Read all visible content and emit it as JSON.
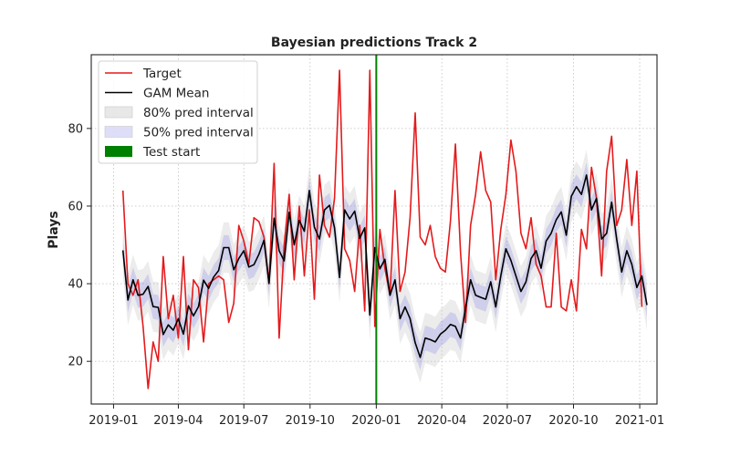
{
  "chart_data": {
    "type": "line",
    "title": "Bayesian predictions Track 2",
    "xlabel": "",
    "ylabel": "Plays",
    "xlim": [
      "2018-12-01",
      "2021-01-25"
    ],
    "ylim": [
      9,
      99
    ],
    "x_tick_labels": [
      "2019-01",
      "2019-04",
      "2019-07",
      "2019-10",
      "2020-01",
      "2020-04",
      "2020-07",
      "2020-10",
      "2021-01"
    ],
    "x_tick_dates": [
      "2019-01-01",
      "2019-04-01",
      "2019-07-01",
      "2019-10-01",
      "2020-01-01",
      "2020-04-01",
      "2020-07-01",
      "2020-10-01",
      "2021-01-01"
    ],
    "y_ticks": [
      20,
      40,
      60,
      80
    ],
    "grid": true,
    "legend_position": "top-left",
    "test_start": "2020-01-01",
    "legend": [
      {
        "label": "Target",
        "kind": "line",
        "color": "#e41a1c"
      },
      {
        "label": "GAM Mean",
        "kind": "line",
        "color": "#000000"
      },
      {
        "label": "80% pred interval",
        "kind": "patch",
        "color": "#d9d9d9"
      },
      {
        "label": "50% pred interval",
        "kind": "patch",
        "color": "#c8c8f5"
      },
      {
        "label": "Test start",
        "kind": "patch",
        "color": "#008000"
      }
    ],
    "series": [
      {
        "name": "Target",
        "color": "#e41a1c",
        "points": [
          [
            "2019-01-14",
            64
          ],
          [
            "2019-01-21",
            40
          ],
          [
            "2019-01-28",
            37
          ],
          [
            "2019-02-04",
            41
          ],
          [
            "2019-02-11",
            29
          ],
          [
            "2019-02-18",
            13
          ],
          [
            "2019-02-25",
            25
          ],
          [
            "2019-03-04",
            20
          ],
          [
            "2019-03-11",
            47
          ],
          [
            "2019-03-18",
            31
          ],
          [
            "2019-03-25",
            37
          ],
          [
            "2019-04-01",
            26
          ],
          [
            "2019-04-08",
            47
          ],
          [
            "2019-04-15",
            23
          ],
          [
            "2019-04-22",
            41
          ],
          [
            "2019-04-29",
            39
          ],
          [
            "2019-05-06",
            25
          ],
          [
            "2019-05-13",
            40
          ],
          [
            "2019-05-20",
            41
          ],
          [
            "2019-05-27",
            42
          ],
          [
            "2019-06-03",
            41
          ],
          [
            "2019-06-10",
            30
          ],
          [
            "2019-06-17",
            35
          ],
          [
            "2019-06-24",
            55
          ],
          [
            "2019-07-01",
            51
          ],
          [
            "2019-07-08",
            45
          ],
          [
            "2019-07-15",
            57
          ],
          [
            "2019-07-22",
            56
          ],
          [
            "2019-07-29",
            52
          ],
          [
            "2019-08-05",
            40
          ],
          [
            "2019-08-12",
            71
          ],
          [
            "2019-08-19",
            26
          ],
          [
            "2019-08-26",
            50
          ],
          [
            "2019-09-02",
            63
          ],
          [
            "2019-09-09",
            41
          ],
          [
            "2019-09-16",
            60
          ],
          [
            "2019-09-23",
            42
          ],
          [
            "2019-09-30",
            59
          ],
          [
            "2019-10-07",
            36
          ],
          [
            "2019-10-14",
            68
          ],
          [
            "2019-10-21",
            55
          ],
          [
            "2019-10-28",
            52
          ],
          [
            "2019-11-04",
            62
          ],
          [
            "2019-11-11",
            95
          ],
          [
            "2019-11-18",
            49
          ],
          [
            "2019-11-25",
            46
          ],
          [
            "2019-12-02",
            38
          ],
          [
            "2019-12-09",
            55
          ],
          [
            "2019-12-16",
            33
          ],
          [
            "2019-12-23",
            95
          ],
          [
            "2019-12-30",
            29
          ],
          [
            "2020-01-06",
            54
          ],
          [
            "2020-01-13",
            44
          ],
          [
            "2020-01-20",
            37
          ],
          [
            "2020-01-27",
            64
          ],
          [
            "2020-02-03",
            38
          ],
          [
            "2020-02-10",
            43
          ],
          [
            "2020-02-17",
            57
          ],
          [
            "2020-02-24",
            84
          ],
          [
            "2020-03-02",
            52
          ],
          [
            "2020-03-09",
            50
          ],
          [
            "2020-03-16",
            55
          ],
          [
            "2020-03-23",
            47
          ],
          [
            "2020-03-30",
            44
          ],
          [
            "2020-04-06",
            43
          ],
          [
            "2020-04-13",
            56
          ],
          [
            "2020-04-20",
            76
          ],
          [
            "2020-04-27",
            48
          ],
          [
            "2020-05-04",
            30
          ],
          [
            "2020-05-11",
            55
          ],
          [
            "2020-05-18",
            63
          ],
          [
            "2020-05-25",
            74
          ],
          [
            "2020-06-01",
            64
          ],
          [
            "2020-06-08",
            61
          ],
          [
            "2020-06-15",
            41
          ],
          [
            "2020-06-22",
            54
          ],
          [
            "2020-06-29",
            63
          ],
          [
            "2020-07-06",
            77
          ],
          [
            "2020-07-13",
            69
          ],
          [
            "2020-07-20",
            53
          ],
          [
            "2020-07-27",
            49
          ],
          [
            "2020-08-03",
            57
          ],
          [
            "2020-08-10",
            45
          ],
          [
            "2020-08-17",
            42
          ],
          [
            "2020-08-24",
            34
          ],
          [
            "2020-08-31",
            34
          ],
          [
            "2020-09-07",
            53
          ],
          [
            "2020-09-14",
            34
          ],
          [
            "2020-09-21",
            33
          ],
          [
            "2020-09-28",
            41
          ],
          [
            "2020-10-05",
            33
          ],
          [
            "2020-10-12",
            54
          ],
          [
            "2020-10-19",
            49
          ],
          [
            "2020-10-26",
            70
          ],
          [
            "2020-11-02",
            62
          ],
          [
            "2020-11-09",
            42
          ],
          [
            "2020-11-16",
            69
          ],
          [
            "2020-11-23",
            78
          ],
          [
            "2020-11-30",
            55
          ],
          [
            "2020-12-07",
            59
          ],
          [
            "2020-12-14",
            72
          ],
          [
            "2020-12-21",
            55
          ],
          [
            "2020-12-28",
            69
          ],
          [
            "2021-01-04",
            34
          ]
        ]
      },
      {
        "name": "GAM Mean",
        "color": "#000000",
        "points": [
          [
            "2019-01-14",
            48.6
          ],
          [
            "2019-01-21",
            35.8
          ],
          [
            "2019-01-28",
            41.0
          ],
          [
            "2019-02-04",
            37.0
          ],
          [
            "2019-02-11",
            37.3
          ],
          [
            "2019-02-18",
            39.3
          ],
          [
            "2019-02-25",
            34.1
          ],
          [
            "2019-03-04",
            33.9
          ],
          [
            "2019-03-11",
            26.9
          ],
          [
            "2019-03-18",
            29.4
          ],
          [
            "2019-03-25",
            28.0
          ],
          [
            "2019-04-01",
            31.0
          ],
          [
            "2019-04-08",
            27.0
          ],
          [
            "2019-04-15",
            34.3
          ],
          [
            "2019-04-22",
            31.7
          ],
          [
            "2019-04-29",
            34.1
          ],
          [
            "2019-05-06",
            40.9
          ],
          [
            "2019-05-13",
            38.8
          ],
          [
            "2019-05-20",
            41.7
          ],
          [
            "2019-05-27",
            43.4
          ],
          [
            "2019-06-03",
            49.3
          ],
          [
            "2019-06-10",
            49.3
          ],
          [
            "2019-06-17",
            43.6
          ],
          [
            "2019-06-24",
            46.5
          ],
          [
            "2019-07-01",
            48.5
          ],
          [
            "2019-07-08",
            44.3
          ],
          [
            "2019-07-15",
            44.9
          ],
          [
            "2019-07-22",
            47.6
          ],
          [
            "2019-07-29",
            51.2
          ],
          [
            "2019-08-05",
            40.1
          ],
          [
            "2019-08-12",
            56.9
          ],
          [
            "2019-08-19",
            48.5
          ],
          [
            "2019-08-26",
            45.9
          ],
          [
            "2019-09-02",
            58.4
          ],
          [
            "2019-09-09",
            50.0
          ],
          [
            "2019-09-16",
            56.3
          ],
          [
            "2019-09-23",
            53.5
          ],
          [
            "2019-09-30",
            64.0
          ],
          [
            "2019-10-07",
            54.6
          ],
          [
            "2019-10-14",
            51.5
          ],
          [
            "2019-10-21",
            59.0
          ],
          [
            "2019-10-28",
            60.2
          ],
          [
            "2019-11-04",
            54.4
          ],
          [
            "2019-11-11",
            41.6
          ],
          [
            "2019-11-18",
            59.0
          ],
          [
            "2019-11-25",
            56.7
          ],
          [
            "2019-12-02",
            58.7
          ],
          [
            "2019-12-09",
            51.7
          ],
          [
            "2019-12-16",
            54.4
          ],
          [
            "2019-12-23",
            31.9
          ],
          [
            "2019-12-30",
            49.3
          ],
          [
            "2020-01-06",
            43.8
          ],
          [
            "2020-01-13",
            46.3
          ],
          [
            "2020-01-20",
            37.0
          ],
          [
            "2020-01-27",
            41.0
          ],
          [
            "2020-02-03",
            31.0
          ],
          [
            "2020-02-10",
            34.0
          ],
          [
            "2020-02-17",
            31.0
          ],
          [
            "2020-02-24",
            24.8
          ],
          [
            "2020-03-02",
            21.0
          ],
          [
            "2020-03-09",
            26.0
          ],
          [
            "2020-03-16",
            25.6
          ],
          [
            "2020-03-23",
            25.0
          ],
          [
            "2020-03-30",
            27.0
          ],
          [
            "2020-04-06",
            28.0
          ],
          [
            "2020-04-13",
            29.5
          ],
          [
            "2020-04-20",
            29.0
          ],
          [
            "2020-04-27",
            26.0
          ],
          [
            "2020-05-04",
            33.8
          ],
          [
            "2020-05-11",
            41.0
          ],
          [
            "2020-05-18",
            37.0
          ],
          [
            "2020-05-25",
            36.5
          ],
          [
            "2020-06-01",
            36.0
          ],
          [
            "2020-06-08",
            40.5
          ],
          [
            "2020-06-15",
            34.0
          ],
          [
            "2020-06-22",
            42.0
          ],
          [
            "2020-06-29",
            49.0
          ],
          [
            "2020-07-06",
            46.0
          ],
          [
            "2020-07-13",
            42.0
          ],
          [
            "2020-07-20",
            38.0
          ],
          [
            "2020-07-27",
            40.5
          ],
          [
            "2020-08-03",
            46.5
          ],
          [
            "2020-08-10",
            48.5
          ],
          [
            "2020-08-17",
            44.0
          ],
          [
            "2020-08-24",
            51.0
          ],
          [
            "2020-08-31",
            53.0
          ],
          [
            "2020-09-07",
            56.5
          ],
          [
            "2020-09-14",
            58.5
          ],
          [
            "2020-09-21",
            52.5
          ],
          [
            "2020-09-28",
            62.5
          ],
          [
            "2020-10-05",
            65.0
          ],
          [
            "2020-10-12",
            63.0
          ],
          [
            "2020-10-19",
            68.0
          ],
          [
            "2020-10-26",
            59.0
          ],
          [
            "2020-11-02",
            62.0
          ],
          [
            "2020-11-09",
            51.5
          ],
          [
            "2020-11-16",
            53.0
          ],
          [
            "2020-11-23",
            61.0
          ],
          [
            "2020-11-30",
            51.5
          ],
          [
            "2020-12-07",
            43.0
          ],
          [
            "2020-12-14",
            48.5
          ],
          [
            "2020-12-21",
            45.0
          ],
          [
            "2020-12-28",
            39.0
          ],
          [
            "2021-01-04",
            42.0
          ],
          [
            "2021-01-11",
            34.5
          ]
        ]
      }
    ],
    "interval_80_halfwidth": 6.5,
    "interval_50_halfwidth": 3.2
  }
}
